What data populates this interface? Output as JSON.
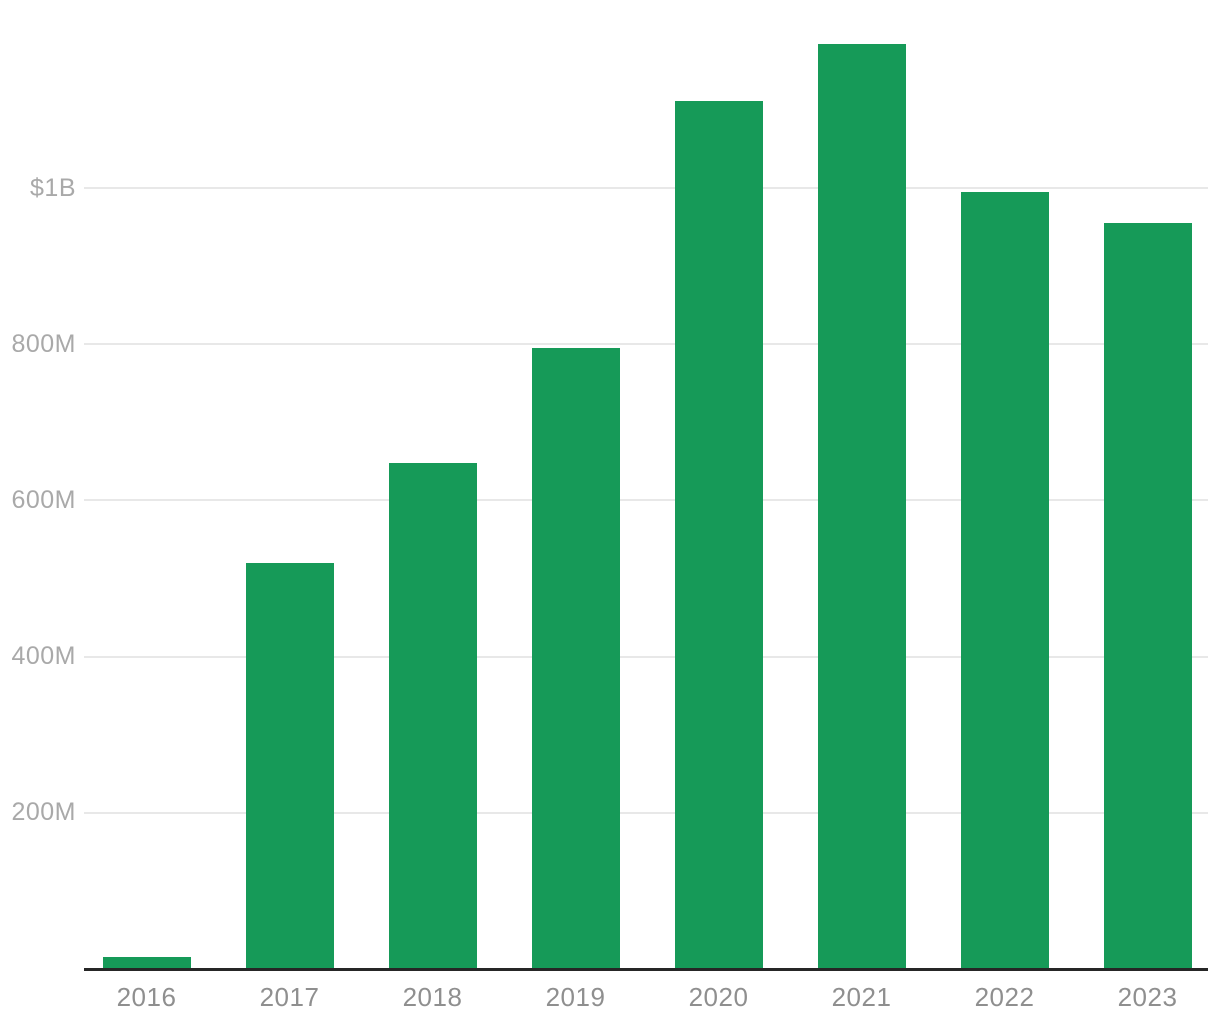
{
  "chart_data": {
    "type": "bar",
    "title": "",
    "xlabel": "",
    "ylabel": "",
    "categories": [
      "2016",
      "2017",
      "2018",
      "2019",
      "2020",
      "2021",
      "2022",
      "2023"
    ],
    "values": [
      15,
      520,
      648,
      795,
      1112,
      1185,
      995,
      955
    ],
    "values_unit": "millions of dollars",
    "ylim": [
      0,
      1200
    ],
    "yticks": [
      {
        "value": 200,
        "label": "200M"
      },
      {
        "value": 400,
        "label": "400M"
      },
      {
        "value": 600,
        "label": "600M"
      },
      {
        "value": 800,
        "label": "800M"
      },
      {
        "value": 1000,
        "label": "$1B"
      }
    ],
    "grid": true,
    "legend": false,
    "colors": {
      "bar": "#169a58",
      "gridline": "#e8e8e8",
      "axis_line": "#262626",
      "y_tick_label": "#a9a9a9",
      "x_tick_label": "#8f8f8f",
      "background": "#ffffff"
    }
  }
}
